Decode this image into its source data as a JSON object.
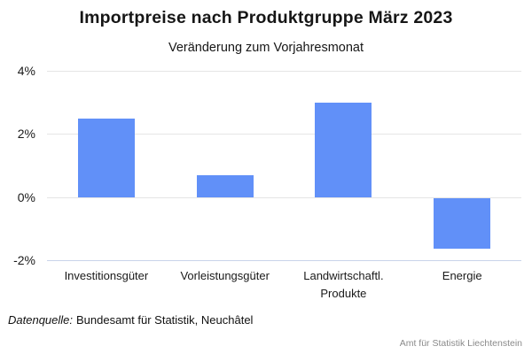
{
  "title": "Importpreise nach Produktgruppe März 2023",
  "subtitle": "Veränderung zum Vorjahresmonat",
  "footer": {
    "source_label": "Datenquelle:",
    "source_text": "Bundesamt für Statistik, Neuchâtel",
    "credit": "Amt für Statistik Liechtenstein"
  },
  "colors": {
    "bar": "#6190F8",
    "gridline": "#e5e5e5",
    "baseline": "#c9d3ea",
    "text": "#1a1a1a",
    "credit_text": "#8a8a8a"
  },
  "chart_data": {
    "type": "bar",
    "title": "Importpreise nach Produktgruppe März 2023",
    "subtitle": "Veränderung zum Vorjahresmonat",
    "categories": [
      "Investitionsgüter",
      "Vorleistungsgüter",
      "Landwirtschaftl. Produkte",
      "Energie"
    ],
    "values": [
      2.5,
      0.7,
      3.0,
      -1.6
    ],
    "unit": "%",
    "xlabel": "",
    "ylabel": "",
    "ylim": [
      -2,
      4
    ],
    "yticks": [
      4,
      2,
      0,
      -2
    ],
    "ytick_labels": [
      "4%",
      "2%",
      "0%",
      "-2%"
    ],
    "grid": true,
    "legend": "none",
    "bar_color": "#6190F8"
  }
}
